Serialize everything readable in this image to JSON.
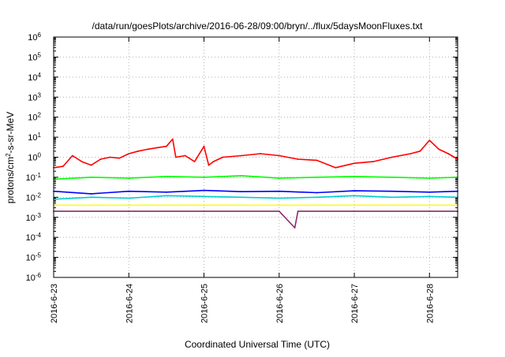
{
  "chart_data": {
    "type": "line",
    "title": "/data/run/goesPlots/archive/2016-06-28/09:00/bryn/../flux/5daysMoonFluxes.txt",
    "xlabel": "Coordinated Universal Time (UTC)",
    "ylabel": {
      "base": "protons/cm",
      "sup": "2",
      "rest": "-s-sr-MeV"
    },
    "yscale": "log",
    "ylim": [
      -6,
      6
    ],
    "y_ticks": [
      {
        "exp": 6,
        "label": "6"
      },
      {
        "exp": 5,
        "label": "5"
      },
      {
        "exp": 4,
        "label": "4"
      },
      {
        "exp": 3,
        "label": "3"
      },
      {
        "exp": 2,
        "label": "2"
      },
      {
        "exp": 1,
        "label": "1"
      },
      {
        "exp": 0,
        "label": "0"
      },
      {
        "exp": -1,
        "label": "-1"
      },
      {
        "exp": -2,
        "label": "-2"
      },
      {
        "exp": -3,
        "label": "-3"
      },
      {
        "exp": -4,
        "label": "-4"
      },
      {
        "exp": -5,
        "label": "-5"
      },
      {
        "exp": -6,
        "label": "-6"
      }
    ],
    "y_tick_base": "10",
    "xlim": [
      "2016-06-23T00:00",
      "2016-06-28T09:00"
    ],
    "x_ticks": [
      "2016-6-23",
      "2016-6-24",
      "2016-6-25",
      "2016-6-26",
      "2016-6-27",
      "2016-6-28"
    ],
    "grid": true,
    "legend": "none",
    "series": [
      {
        "color": "#ff0000",
        "points": [
          [
            "2016-06-23T00:00",
            0.3
          ],
          [
            "2016-06-23T03:00",
            0.35
          ],
          [
            "2016-06-23T06:00",
            1.2
          ],
          [
            "2016-06-23T09:00",
            0.6
          ],
          [
            "2016-06-23T12:00",
            0.4
          ],
          [
            "2016-06-23T15:00",
            0.8
          ],
          [
            "2016-06-23T18:00",
            1.0
          ],
          [
            "2016-06-23T21:00",
            0.9
          ],
          [
            "2016-06-24T00:00",
            1.5
          ],
          [
            "2016-06-24T03:00",
            2.0
          ],
          [
            "2016-06-24T06:00",
            2.5
          ],
          [
            "2016-06-24T09:00",
            3.0
          ],
          [
            "2016-06-24T12:00",
            3.5
          ],
          [
            "2016-06-24T14:00",
            8.0
          ],
          [
            "2016-06-24T15:00",
            1.0
          ],
          [
            "2016-06-24T18:00",
            1.2
          ],
          [
            "2016-06-24T21:00",
            0.6
          ],
          [
            "2016-06-25T00:00",
            3.5
          ],
          [
            "2016-06-25T01:30",
            0.4
          ],
          [
            "2016-06-25T03:00",
            0.6
          ],
          [
            "2016-06-25T06:00",
            1.0
          ],
          [
            "2016-06-25T12:00",
            1.2
          ],
          [
            "2016-06-25T18:00",
            1.5
          ],
          [
            "2016-06-26T00:00",
            1.2
          ],
          [
            "2016-06-26T06:00",
            0.8
          ],
          [
            "2016-06-26T12:00",
            0.7
          ],
          [
            "2016-06-26T18:00",
            0.3
          ],
          [
            "2016-06-27T00:00",
            0.5
          ],
          [
            "2016-06-27T06:00",
            0.6
          ],
          [
            "2016-06-27T12:00",
            1.0
          ],
          [
            "2016-06-27T18:00",
            1.5
          ],
          [
            "2016-06-27T21:00",
            2.0
          ],
          [
            "2016-06-28T00:00",
            7.0
          ],
          [
            "2016-06-28T03:00",
            2.5
          ],
          [
            "2016-06-28T06:00",
            1.5
          ],
          [
            "2016-06-28T09:00",
            0.8
          ]
        ]
      },
      {
        "color": "#00ff00",
        "points": [
          [
            "2016-06-23T00:00",
            0.08
          ],
          [
            "2016-06-23T12:00",
            0.1
          ],
          [
            "2016-06-24T00:00",
            0.09
          ],
          [
            "2016-06-24T12:00",
            0.11
          ],
          [
            "2016-06-25T00:00",
            0.1
          ],
          [
            "2016-06-25T12:00",
            0.12
          ],
          [
            "2016-06-26T00:00",
            0.09
          ],
          [
            "2016-06-26T12:00",
            0.1
          ],
          [
            "2016-06-27T00:00",
            0.11
          ],
          [
            "2016-06-27T12:00",
            0.1
          ],
          [
            "2016-06-28T00:00",
            0.09
          ],
          [
            "2016-06-28T09:00",
            0.1
          ]
        ]
      },
      {
        "color": "#00cccc",
        "points": [
          [
            "2016-06-23T00:00",
            0.008
          ],
          [
            "2016-06-23T12:00",
            0.01
          ],
          [
            "2016-06-24T00:00",
            0.009
          ],
          [
            "2016-06-24T12:00",
            0.012
          ],
          [
            "2016-06-25T00:00",
            0.011
          ],
          [
            "2016-06-25T12:00",
            0.01
          ],
          [
            "2016-06-26T00:00",
            0.009
          ],
          [
            "2016-06-26T12:00",
            0.01
          ],
          [
            "2016-06-27T00:00",
            0.012
          ],
          [
            "2016-06-27T12:00",
            0.01
          ],
          [
            "2016-06-28T00:00",
            0.011
          ],
          [
            "2016-06-28T09:00",
            0.01
          ]
        ]
      },
      {
        "color": "#0000ff",
        "points": [
          [
            "2016-06-23T00:00",
            0.02
          ],
          [
            "2016-06-23T12:00",
            0.015
          ],
          [
            "2016-06-24T00:00",
            0.02
          ],
          [
            "2016-06-24T12:00",
            0.018
          ],
          [
            "2016-06-25T00:00",
            0.022
          ],
          [
            "2016-06-25T12:00",
            0.019
          ],
          [
            "2016-06-26T00:00",
            0.02
          ],
          [
            "2016-06-26T12:00",
            0.017
          ],
          [
            "2016-06-27T00:00",
            0.021
          ],
          [
            "2016-06-27T12:00",
            0.02
          ],
          [
            "2016-06-28T00:00",
            0.018
          ],
          [
            "2016-06-28T09:00",
            0.02
          ]
        ]
      },
      {
        "color": "#ffff00",
        "points": [
          [
            "2016-06-23T00:00",
            0.004
          ],
          [
            "2016-06-24T00:00",
            0.004
          ],
          [
            "2016-06-25T00:00",
            0.004
          ],
          [
            "2016-06-26T00:00",
            0.004
          ],
          [
            "2016-06-27T00:00",
            0.004
          ],
          [
            "2016-06-28T00:00",
            0.004
          ],
          [
            "2016-06-28T09:00",
            0.004
          ]
        ]
      },
      {
        "color": "#8b2a6b",
        "points": [
          [
            "2016-06-23T00:00",
            0.002
          ],
          [
            "2016-06-24T00:00",
            0.002
          ],
          [
            "2016-06-25T00:00",
            0.002
          ],
          [
            "2016-06-26T00:00",
            0.002
          ],
          [
            "2016-06-26T05:00",
            0.0003
          ],
          [
            "2016-06-26T06:00",
            0.002
          ],
          [
            "2016-06-27T00:00",
            0.002
          ],
          [
            "2016-06-28T00:00",
            0.002
          ],
          [
            "2016-06-28T09:00",
            0.002
          ]
        ]
      }
    ]
  }
}
